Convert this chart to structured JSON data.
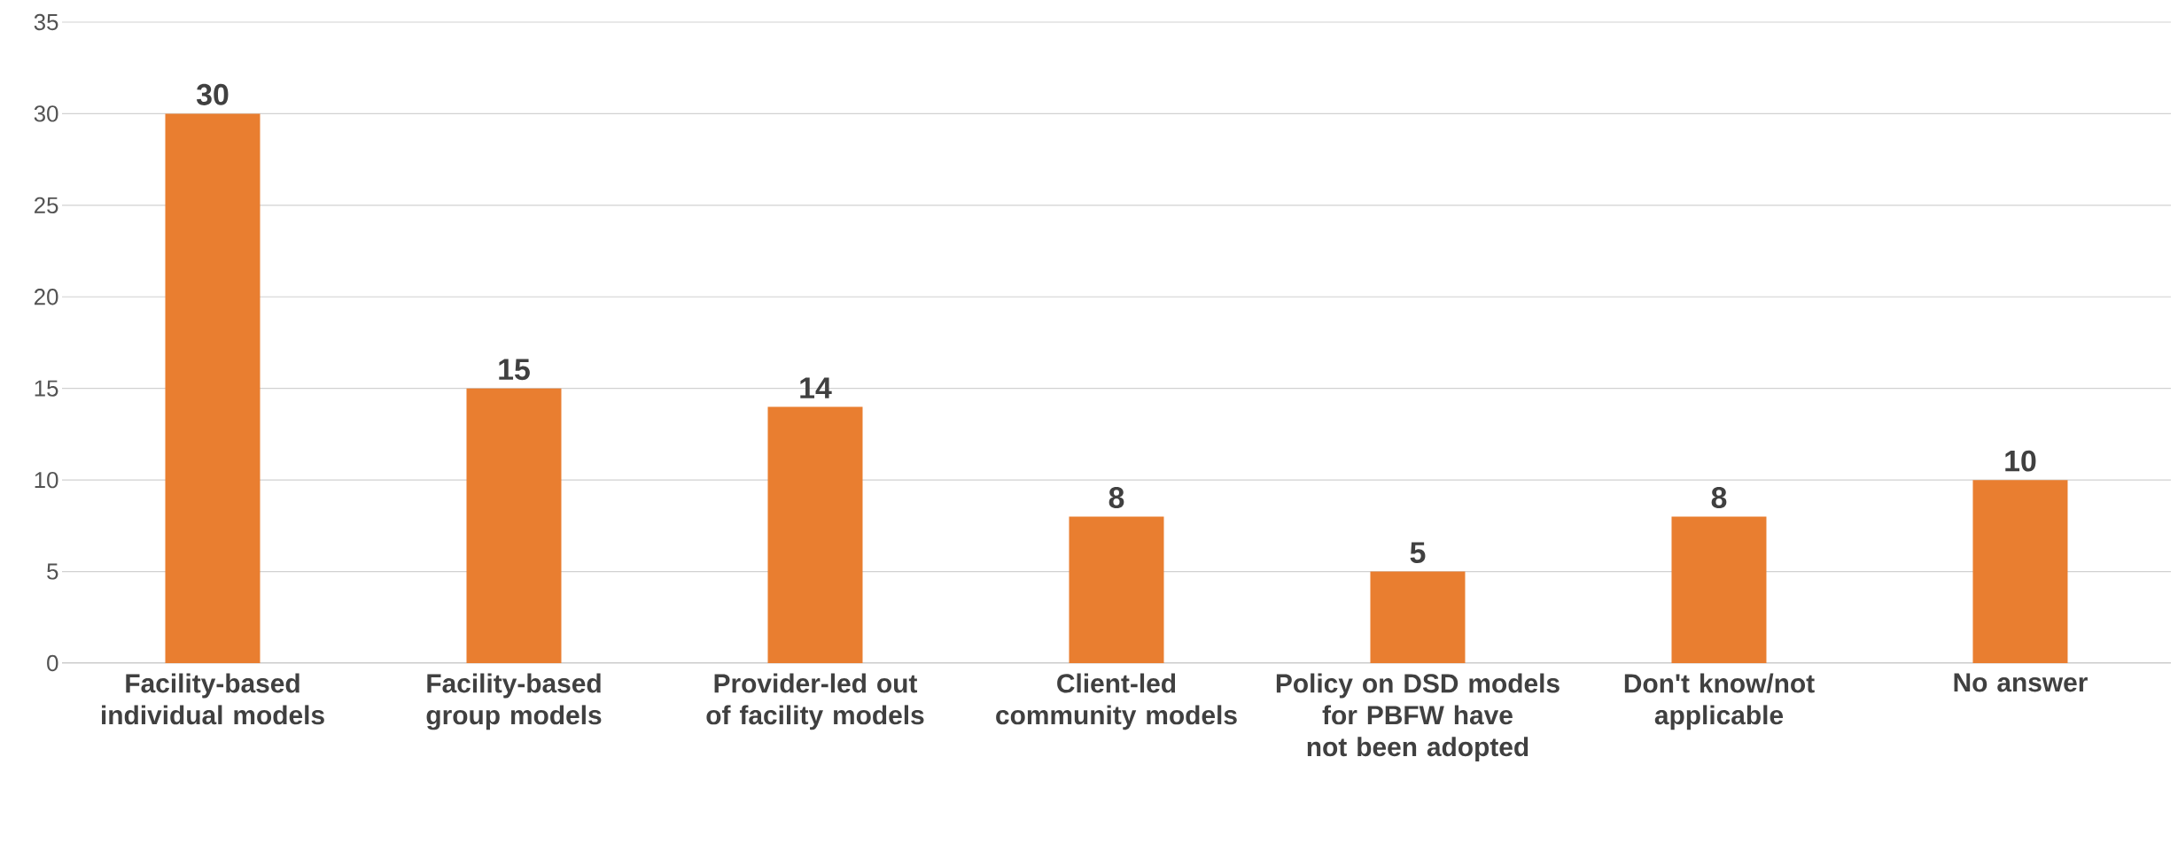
{
  "chart_data": {
    "type": "bar",
    "categories": [
      "Facility-based individual models",
      "Facility-based group models",
      "Provider-led out of facility models",
      "Client-led community models",
      "Policy on DSD models for PBFW have not been adopted",
      "Don't know/not applicable",
      "No answer"
    ],
    "values": [
      30,
      15,
      14,
      8,
      5,
      8,
      10
    ],
    "color": "#e97e30",
    "ylim": [
      0,
      35
    ],
    "yticks": [
      0,
      5,
      10,
      15,
      20,
      25,
      30,
      35
    ],
    "grid": "y",
    "data_labels": true
  }
}
